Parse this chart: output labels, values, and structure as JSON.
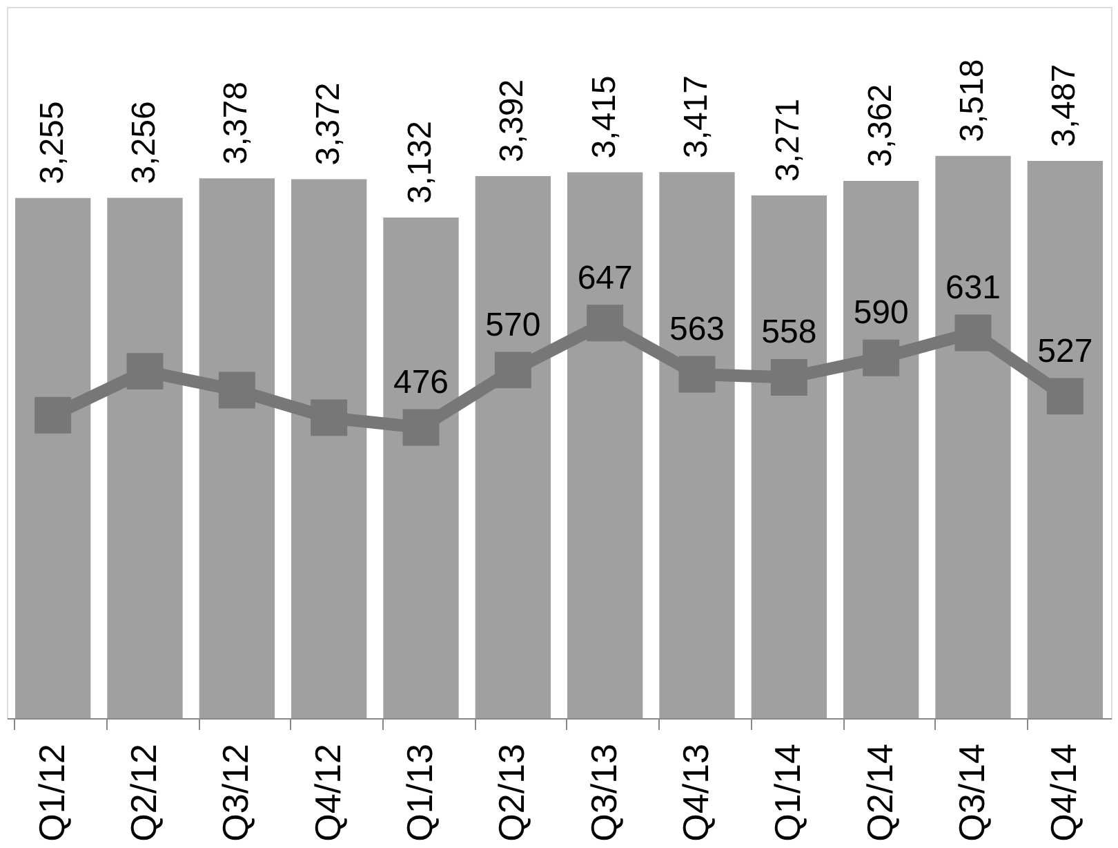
{
  "chart_data": {
    "type": "bar",
    "categories": [
      "Q1/12",
      "Q2/12",
      "Q3/12",
      "Q4/12",
      "Q1/13",
      "Q2/13",
      "Q3/13",
      "Q4/13",
      "Q1/14",
      "Q2/14",
      "Q3/14",
      "Q4/14"
    ],
    "series": [
      {
        "axis": "y",
        "color": "#a0a0a0",
        "values": [
          3255,
          3256,
          3378,
          3372,
          3132,
          3392,
          3415,
          3417,
          3271,
          3362,
          3518,
          3487
        ],
        "value_labels": [
          "3,255",
          "3,256",
          "3,378",
          "3,372",
          "3,132",
          "3,392",
          "3,415",
          "3,417",
          "3,271",
          "3,362",
          "3,518",
          "3,487"
        ]
      },
      {
        "type": "line",
        "axis": "y2",
        "color": "#777777",
        "marker": "square",
        "line_style": "solid",
        "values": [
          496,
          568,
          537,
          492,
          476,
          570,
          647,
          563,
          558,
          590,
          631,
          527
        ],
        "value_labels": [
          null,
          null,
          null,
          null,
          "476",
          "570",
          "647",
          "563",
          "558",
          "590",
          "631",
          "527"
        ]
      }
    ],
    "tick_labels": "x",
    "grid": false
  }
}
